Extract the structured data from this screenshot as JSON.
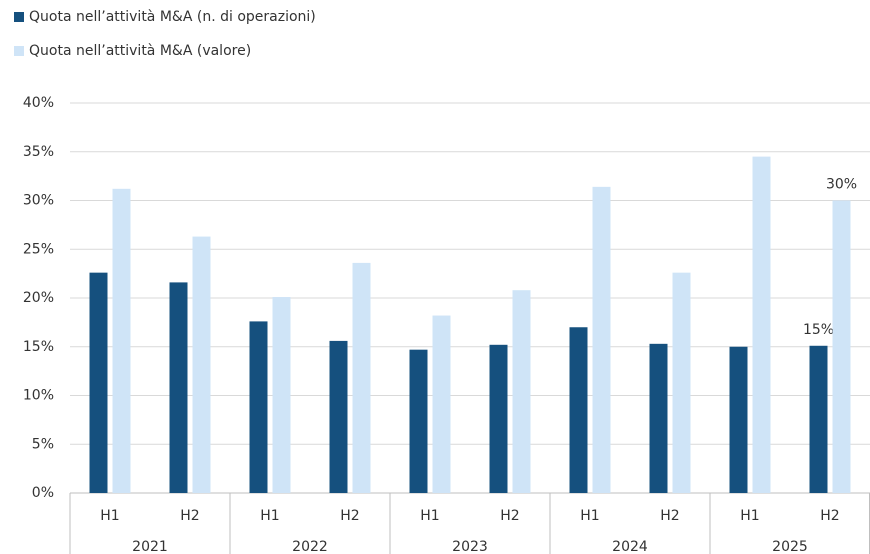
{
  "chart_data": {
    "type": "bar",
    "categories": [
      "H1",
      "H2",
      "H1",
      "H2",
      "H1",
      "H2",
      "H1",
      "H2",
      "H1",
      "H2"
    ],
    "groups": [
      "2021",
      "2022",
      "2023",
      "2024",
      "2025"
    ],
    "series": [
      {
        "name": "Quota nell’attività M&A (n. di operazioni)",
        "color": "#15507e",
        "values": [
          22.6,
          21.6,
          17.6,
          15.6,
          14.7,
          15.2,
          17.0,
          15.3,
          15.0,
          15.1
        ],
        "value_labels": [
          null,
          null,
          null,
          null,
          null,
          null,
          null,
          null,
          null,
          "15%"
        ]
      },
      {
        "name": "Quota nell’attività M&A (valore)",
        "color": "#cfe4f7",
        "values": [
          31.2,
          26.3,
          20.1,
          23.6,
          18.2,
          20.8,
          31.4,
          22.6,
          34.5,
          30.0
        ],
        "value_labels": [
          null,
          null,
          null,
          null,
          null,
          null,
          null,
          null,
          null,
          "30%"
        ]
      }
    ],
    "ylim": [
      0,
      40
    ],
    "yticks": [
      {
        "value": 0,
        "label": "0%"
      },
      {
        "value": 5,
        "label": "5%"
      },
      {
        "value": 10,
        "label": "10%"
      },
      {
        "value": 15,
        "label": "15%"
      },
      {
        "value": 20,
        "label": "20%"
      },
      {
        "value": 25,
        "label": "25%"
      },
      {
        "value": 30,
        "label": "30%"
      },
      {
        "value": 35,
        "label": "35%"
      },
      {
        "value": 40,
        "label": "40%"
      }
    ],
    "grid": true,
    "legend": "top-left"
  }
}
